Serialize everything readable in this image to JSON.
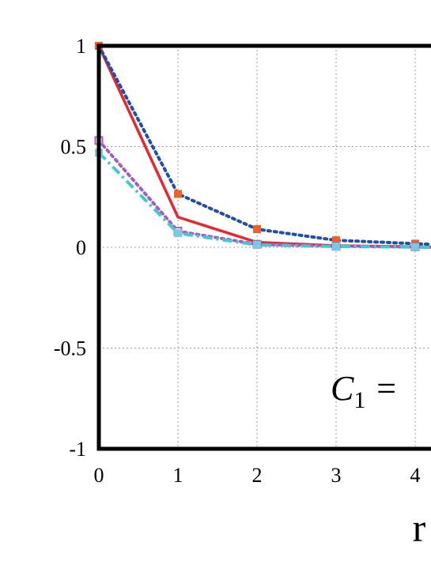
{
  "chart_data": {
    "type": "line",
    "title": "",
    "xlabel": "r",
    "ylabel": "",
    "xlim": [
      0,
      4.2
    ],
    "ylim": [
      -1,
      1
    ],
    "x_ticks": [
      "0",
      "1",
      "2",
      "3",
      "4"
    ],
    "y_ticks": [
      "1",
      "0.5",
      "0",
      "-0.5",
      "-1"
    ],
    "grid": true,
    "annotation": {
      "prefix": "C",
      "subscript": "1",
      "suffix": " ="
    },
    "x": [
      0,
      1,
      2,
      3,
      4,
      4.2
    ],
    "series": [
      {
        "color": "#e8262d",
        "line_style": "solid",
        "marker": "none",
        "values": [
          1.0,
          0.15,
          0.025,
          0.008,
          0.003,
          0.002
        ]
      },
      {
        "color": "#1f4fa8",
        "line_style": "dotted",
        "marker": "square",
        "marker_color": "#f0602a",
        "values": [
          1.0,
          0.265,
          0.09,
          0.035,
          0.018,
          0.015
        ]
      },
      {
        "color": "#a55cc0",
        "line_style": "dotted",
        "marker": "open-square",
        "values": [
          0.53,
          0.08,
          0.015,
          0.005,
          0.002,
          0.001
        ]
      },
      {
        "color": "#44c8d0",
        "line_style": "dashdot",
        "marker": "square",
        "marker_color": "#7cc8e0",
        "values": [
          0.47,
          0.07,
          0.012,
          0.004,
          0.001,
          0.0
        ]
      }
    ]
  }
}
